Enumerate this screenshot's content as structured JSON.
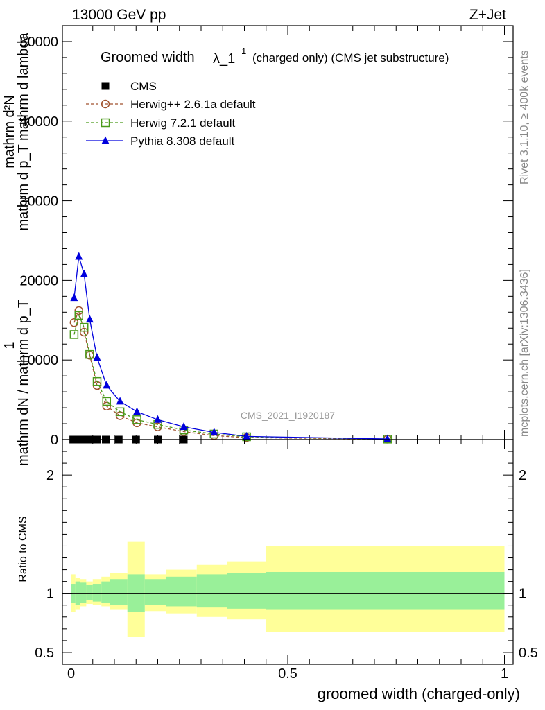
{
  "header": {
    "left": "13000 GeV pp",
    "right": "Z+Jet"
  },
  "title": {
    "main": "Groomed width",
    "lambda": "λ_1",
    "sup": "1",
    "suffix": "(charged only) (CMS jet substructure)"
  },
  "side_labels": {
    "rivet": "Rivet 3.1.10, ≥ 400k events",
    "mcplots": "mcplots.cern.ch [arXiv:1306.3436]"
  },
  "watermark": "CMS_2021_I1920187",
  "ylabel_top": {
    "numerator": "mathrm d²N",
    "denominator": "mathrm d p_T mathrm d lambda",
    "prefix_num": "1",
    "prefix_den": "mathrm dN / mathrm d p_T"
  },
  "ylabel_ratio": "Ratio to CMS",
  "xlabel": "groomed width (charged-only)",
  "chart_data": [
    {
      "type": "line",
      "panel": "main",
      "xlim": [
        -0.02,
        1.02
      ],
      "ylim": [
        0,
        52000
      ],
      "yticks": [
        0,
        10000,
        20000,
        30000,
        40000,
        50000
      ],
      "yticklabels": [
        "0",
        "10000",
        "20000",
        "30000",
        "40000",
        "50000"
      ],
      "series": [
        {
          "name": "CMS",
          "marker": "square-filled",
          "color": "#000000",
          "x": [
            0.005,
            0.015,
            0.025,
            0.035,
            0.045,
            0.06,
            0.08,
            0.11,
            0.15,
            0.2,
            0.26
          ],
          "y": [
            0,
            0,
            0,
            0,
            0,
            0,
            0,
            0,
            0,
            0,
            0
          ]
        },
        {
          "name": "Herwig++ 2.6.1a default",
          "marker": "circle-open",
          "linestyle": "dashed",
          "color": "#a0522d",
          "x": [
            0.007,
            0.018,
            0.03,
            0.043,
            0.06,
            0.082,
            0.113,
            0.152,
            0.2,
            0.26,
            0.33,
            0.405,
            0.73
          ],
          "y": [
            14700,
            16200,
            13500,
            10600,
            6800,
            4200,
            3000,
            2100,
            1600,
            1000,
            500,
            250,
            50
          ]
        },
        {
          "name": "Herwig 7.2.1 default",
          "marker": "square-open",
          "linestyle": "dashed",
          "color": "#4a9a1a",
          "x": [
            0.007,
            0.018,
            0.03,
            0.043,
            0.06,
            0.082,
            0.113,
            0.152,
            0.2,
            0.26,
            0.33,
            0.405,
            0.73
          ],
          "y": [
            13200,
            15600,
            14100,
            10700,
            7300,
            4800,
            3500,
            2500,
            1900,
            1200,
            700,
            350,
            60
          ]
        },
        {
          "name": "Pythia 8.308 default",
          "marker": "triangle-filled",
          "linestyle": "solid",
          "color": "#0000dd",
          "x": [
            0.007,
            0.018,
            0.03,
            0.043,
            0.06,
            0.082,
            0.113,
            0.152,
            0.2,
            0.26,
            0.33,
            0.405,
            0.73
          ],
          "y": [
            17800,
            23000,
            20800,
            15100,
            10300,
            6800,
            4800,
            3500,
            2500,
            1600,
            900,
            400,
            80
          ]
        }
      ]
    },
    {
      "type": "area",
      "panel": "ratio",
      "xlim": [
        -0.02,
        1.02
      ],
      "ylim": [
        0.4,
        2.3
      ],
      "yticks": [
        0.5,
        1,
        2
      ],
      "yticklabels": [
        "0.5",
        "1",
        "2"
      ],
      "xticks": [
        0,
        0.5,
        1
      ],
      "xticklabels": [
        "0",
        "0.5",
        "1"
      ],
      "bins": [
        0,
        0.01,
        0.02,
        0.035,
        0.05,
        0.07,
        0.09,
        0.13,
        0.17,
        0.22,
        0.29,
        0.36,
        0.45,
        1.0
      ],
      "band_inner": {
        "color": "#99f099",
        "lo": [
          0.92,
          0.9,
          0.92,
          0.94,
          0.93,
          0.92,
          0.9,
          0.84,
          0.9,
          0.89,
          0.88,
          0.87,
          0.86
        ],
        "hi": [
          1.08,
          1.1,
          1.09,
          1.07,
          1.08,
          1.1,
          1.12,
          1.16,
          1.12,
          1.14,
          1.16,
          1.17,
          1.18
        ]
      },
      "band_outer": {
        "color": "#ffff99",
        "lo": [
          0.84,
          0.86,
          0.89,
          0.91,
          0.9,
          0.89,
          0.86,
          0.63,
          0.85,
          0.83,
          0.8,
          0.78,
          0.67
        ],
        "hi": [
          1.16,
          1.13,
          1.12,
          1.1,
          1.12,
          1.14,
          1.17,
          1.44,
          1.16,
          1.2,
          1.24,
          1.27,
          1.4
        ]
      },
      "reference_line": 1
    }
  ]
}
